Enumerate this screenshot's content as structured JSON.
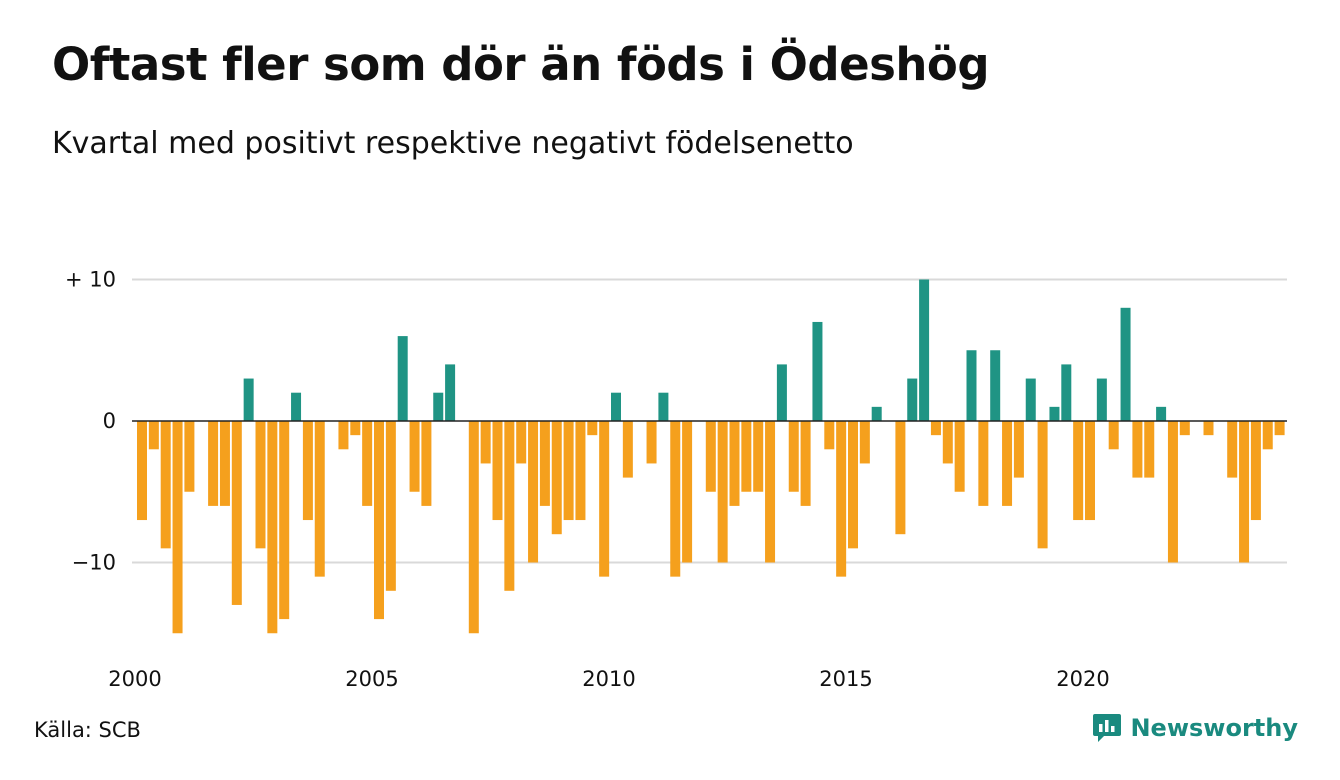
{
  "title": "Oftast fler som dör än föds i Ödeshög",
  "subtitle": "Kvartal med positivt respektive negativt födelsenetto",
  "source": "Källa: SCB",
  "brand": {
    "name": "Newsworthy",
    "icon": "newsworthy-logo-icon",
    "color": "#1a8a7f"
  },
  "colors": {
    "positive": "#1f9484",
    "negative": "#f5a01d",
    "grid": "#d9d9d9",
    "zero_line": "#222222"
  },
  "chart_data": {
    "type": "bar",
    "x_unit": "quarter",
    "x_start": "2000 Q1",
    "x_ticks": [
      {
        "label": "2000",
        "year": 2000
      },
      {
        "label": "2005",
        "year": 2005
      },
      {
        "label": "2010",
        "year": 2010
      },
      {
        "label": "2015",
        "year": 2015
      },
      {
        "label": "2020",
        "year": 2020
      }
    ],
    "y_ticks": [
      {
        "label": "+ 10",
        "value": 10
      },
      {
        "label": "0",
        "value": 0
      },
      {
        "label": "−10",
        "value": -10
      }
    ],
    "ylim": [
      -15,
      10
    ],
    "grid": true,
    "values": [
      -7,
      -2,
      -9,
      -15,
      -5,
      0,
      -6,
      -6,
      -13,
      3,
      -9,
      -15,
      -14,
      2,
      -7,
      -11,
      0,
      -2,
      -1,
      -6,
      -14,
      -12,
      6,
      -5,
      -6,
      2,
      4,
      0,
      -15,
      -3,
      -7,
      -12,
      -3,
      -10,
      -6,
      -8,
      -7,
      -7,
      -1,
      -11,
      2,
      -4,
      0,
      -3,
      2,
      -11,
      -10,
      0,
      -5,
      -10,
      -6,
      -5,
      -5,
      -10,
      4,
      -5,
      -6,
      7,
      -2,
      -11,
      -9,
      -3,
      1,
      0,
      -8,
      3,
      10,
      -1,
      -3,
      -5,
      5,
      -6,
      5,
      -6,
      -4,
      3,
      -9,
      1,
      4,
      -7,
      -7,
      3,
      -2,
      8,
      -4,
      -4,
      1,
      -10,
      -1,
      0,
      -1,
      0,
      -4,
      -10,
      -7,
      -2,
      -1
    ]
  }
}
